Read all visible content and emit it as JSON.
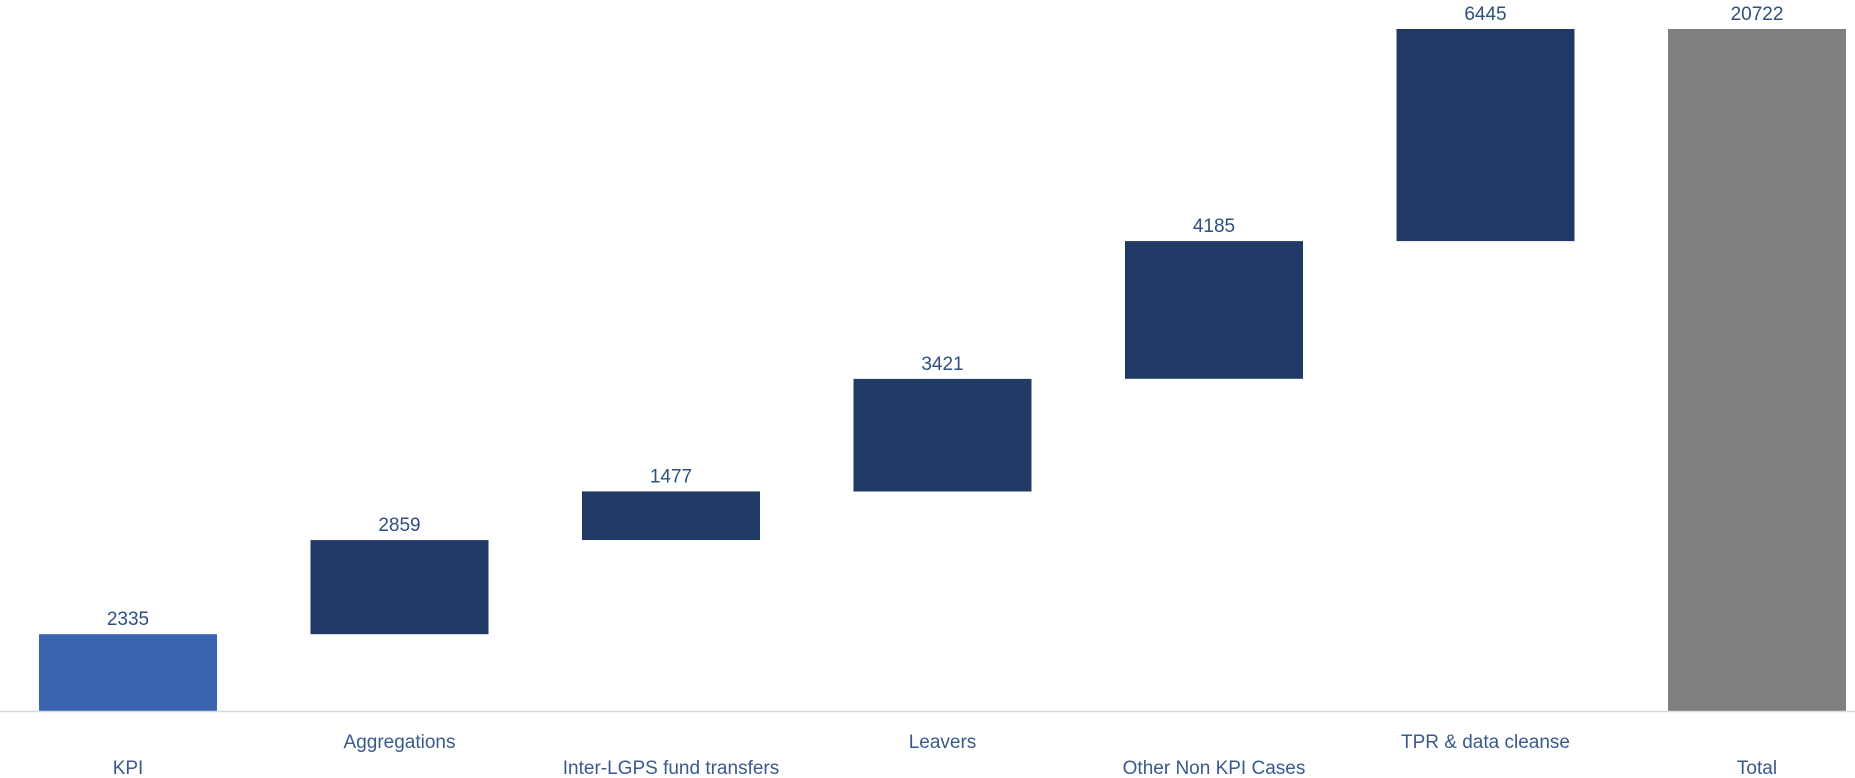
{
  "chart_data": {
    "type": "bar",
    "subtype": "waterfall",
    "title": "",
    "xlabel": "",
    "ylabel": "",
    "grid": false,
    "legend": "none",
    "ylim": [
      0,
      20722
    ],
    "categories": [
      "KPI",
      "Aggregations",
      "Inter-LGPS fund transfers",
      "Leavers",
      "Other Non KPI Cases",
      "TPR & data cleanse",
      "Total"
    ],
    "values": [
      2335,
      2859,
      1477,
      3421,
      4185,
      6445,
      20722
    ],
    "bar_kinds": [
      "start",
      "increase",
      "increase",
      "increase",
      "increase",
      "increase",
      "total"
    ],
    "data_labels": [
      "2335",
      "2859",
      "1477",
      "3421",
      "4185",
      "6445",
      "20722"
    ],
    "colors": {
      "start": "#3a64b0",
      "increase": "#213965",
      "total": "#7f7f7f",
      "axis": "#d9d9d9",
      "label": "#2f4f7f",
      "category": "#3a5a8c"
    }
  }
}
